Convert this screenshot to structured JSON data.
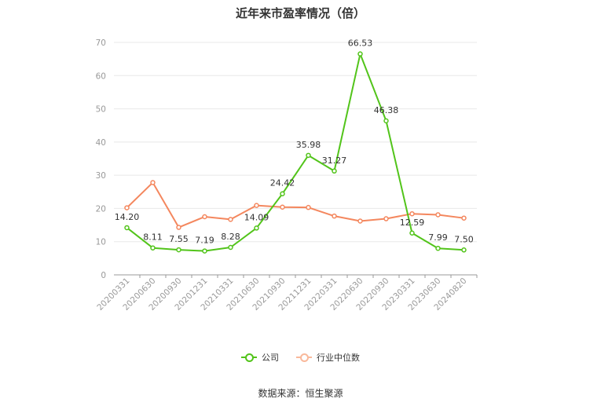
{
  "chart_data": {
    "type": "line",
    "title": "近年来市盈率情况（倍）",
    "categories": [
      "20200331",
      "20200630",
      "20200930",
      "20201231",
      "20210331",
      "20210630",
      "20210930",
      "20211231",
      "20220331",
      "20220630",
      "20220930",
      "20230331",
      "20230630",
      "20240820"
    ],
    "ylim": [
      0,
      70
    ],
    "yticks": [
      0,
      10,
      20,
      30,
      40,
      50,
      60,
      70
    ],
    "grid": true,
    "legend_position": "bottom",
    "series": [
      {
        "name": "公司",
        "color": "#52c41a",
        "values": [
          14.2,
          8.11,
          7.55,
          7.19,
          8.28,
          14.09,
          24.42,
          35.98,
          31.27,
          66.53,
          46.38,
          12.59,
          7.99,
          7.5
        ],
        "labels": [
          "14.20",
          "8.11",
          "7.55",
          "7.19",
          "8.28",
          "14.09",
          "24.42",
          "35.98",
          "31.27",
          "66.53",
          "46.38",
          "12.59",
          "7.99",
          "7.50"
        ]
      },
      {
        "name": "行业中位数",
        "color": "#f4875e",
        "values": [
          20.2,
          27.8,
          14.3,
          17.5,
          16.7,
          20.9,
          20.4,
          20.3,
          17.7,
          16.2,
          16.9,
          18.4,
          18.1,
          17.1
        ]
      }
    ]
  },
  "source_text": "数据来源：恒生聚源"
}
